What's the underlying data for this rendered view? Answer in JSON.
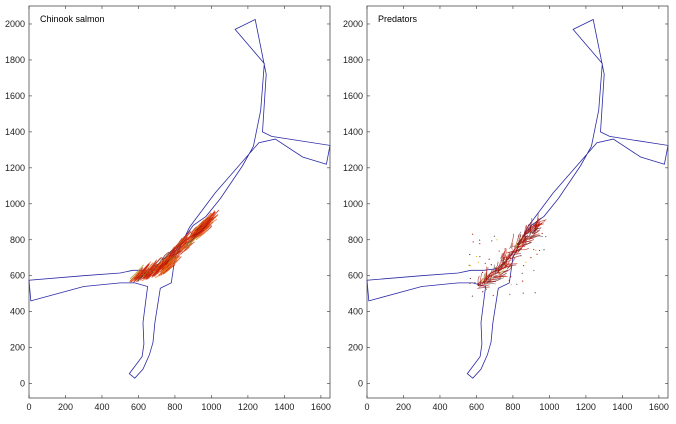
{
  "chart_data": [
    {
      "type": "line",
      "title": "Chinook salmon",
      "xlim": [
        0,
        1650
      ],
      "ylim": [
        -80,
        2100
      ],
      "xticks": [
        0,
        200,
        400,
        600,
        800,
        1000,
        1200,
        1400,
        1600
      ],
      "yticks": [
        0,
        200,
        400,
        600,
        800,
        1000,
        1200,
        1400,
        1600,
        1800,
        2000
      ],
      "xlabel": "",
      "ylabel": "",
      "grid": false,
      "outline_color": "#2a2aa6",
      "track_colors": [
        "#c21a0a",
        "#d93a0b",
        "#e86a10",
        "#7a0a0a",
        "#9a9a20",
        "#444444"
      ],
      "outline": [
        [
          1130,
          1970
        ],
        [
          1240,
          2025
        ],
        [
          1300,
          1720
        ],
        [
          1280,
          1400
        ],
        [
          1330,
          1375
        ],
        [
          1650,
          1325
        ],
        [
          1630,
          1220
        ],
        [
          1500,
          1260
        ],
        [
          1350,
          1360
        ],
        [
          1260,
          1340
        ],
        [
          1020,
          1060
        ],
        [
          880,
          870
        ],
        [
          800,
          700
        ],
        [
          780,
          560
        ],
        [
          720,
          530
        ],
        [
          690,
          340
        ],
        [
          680,
          230
        ],
        [
          660,
          160
        ],
        [
          625,
          80
        ],
        [
          580,
          30
        ],
        [
          550,
          55
        ],
        [
          620,
          150
        ],
        [
          630,
          220
        ],
        [
          625,
          340
        ],
        [
          650,
          540
        ],
        [
          580,
          560
        ],
        [
          500,
          560
        ],
        [
          300,
          540
        ],
        [
          10,
          460
        ],
        [
          0,
          575
        ],
        [
          300,
          600
        ],
        [
          500,
          615
        ],
        [
          570,
          630
        ],
        [
          640,
          630
        ],
        [
          720,
          640
        ],
        [
          780,
          700
        ],
        [
          830,
          780
        ],
        [
          900,
          880
        ],
        [
          970,
          930
        ],
        [
          1050,
          1030
        ],
        [
          1170,
          1210
        ],
        [
          1230,
          1320
        ],
        [
          1270,
          1520
        ],
        [
          1290,
          1780
        ]
      ],
      "track_band": {
        "x": [
          560,
          700,
          760,
          900,
          960
        ],
        "y": [
          570,
          610,
          680,
          820,
          880
        ],
        "angle_deg": 45
      }
    },
    {
      "type": "line",
      "title": "Predators",
      "xlim": [
        0,
        1650
      ],
      "ylim": [
        -80,
        2100
      ],
      "xticks": [
        0,
        200,
        400,
        600,
        800,
        1000,
        1200,
        1400,
        1600
      ],
      "yticks": [
        0,
        200,
        400,
        600,
        800,
        1000,
        1200,
        1400,
        1600,
        1800,
        2000
      ],
      "xlabel": "",
      "ylabel": "",
      "grid": false,
      "outline_color": "#2a2aa6",
      "track_colors": [
        "#c21a0a",
        "#8a1010",
        "#555555",
        "#e0c020",
        "#6a6a6a"
      ],
      "outline": [
        [
          1130,
          1970
        ],
        [
          1240,
          2025
        ],
        [
          1300,
          1720
        ],
        [
          1280,
          1400
        ],
        [
          1330,
          1375
        ],
        [
          1650,
          1325
        ],
        [
          1630,
          1220
        ],
        [
          1500,
          1260
        ],
        [
          1350,
          1360
        ],
        [
          1260,
          1340
        ],
        [
          1020,
          1060
        ],
        [
          880,
          870
        ],
        [
          800,
          700
        ],
        [
          780,
          560
        ],
        [
          720,
          530
        ],
        [
          690,
          340
        ],
        [
          680,
          230
        ],
        [
          660,
          160
        ],
        [
          625,
          80
        ],
        [
          580,
          30
        ],
        [
          550,
          55
        ],
        [
          620,
          150
        ],
        [
          630,
          220
        ],
        [
          625,
          340
        ],
        [
          650,
          540
        ],
        [
          580,
          560
        ],
        [
          500,
          560
        ],
        [
          300,
          540
        ],
        [
          10,
          460
        ],
        [
          0,
          575
        ],
        [
          300,
          600
        ],
        [
          500,
          615
        ],
        [
          570,
          630
        ],
        [
          640,
          630
        ],
        [
          720,
          640
        ],
        [
          780,
          700
        ],
        [
          830,
          780
        ],
        [
          900,
          880
        ],
        [
          970,
          930
        ],
        [
          1050,
          1030
        ],
        [
          1170,
          1210
        ],
        [
          1230,
          1320
        ],
        [
          1270,
          1520
        ],
        [
          1290,
          1780
        ]
      ],
      "track_band": {
        "x": [
          600,
          700,
          760,
          860,
          930
        ],
        "y": [
          540,
          600,
          680,
          800,
          880
        ],
        "angle_deg": 48
      }
    }
  ]
}
